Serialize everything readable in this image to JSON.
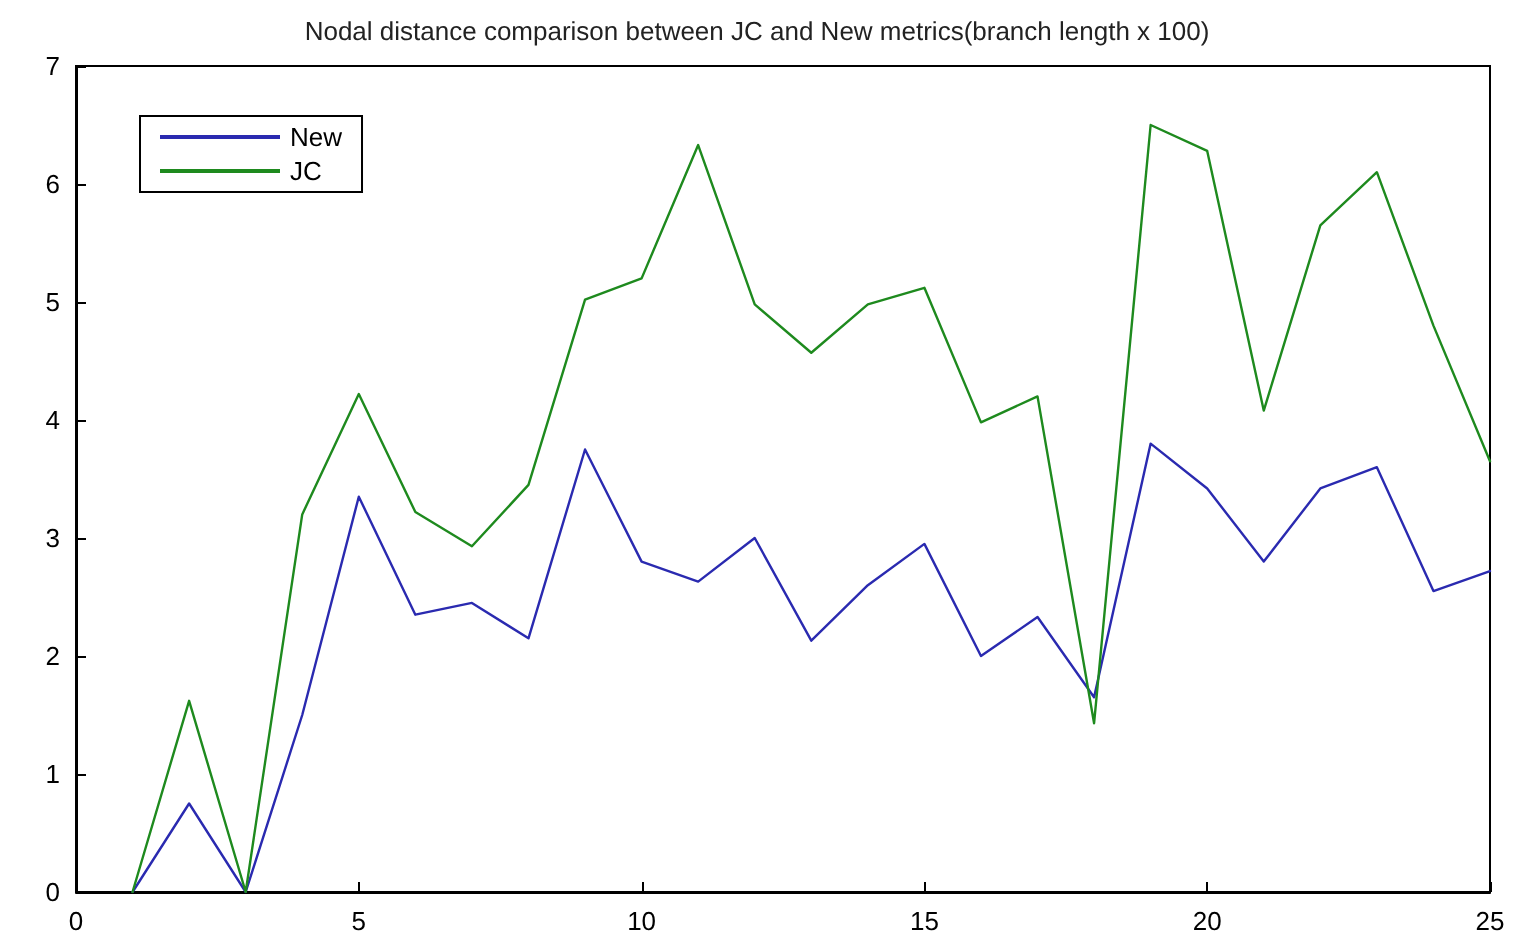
{
  "chart_data": {
    "type": "line",
    "title": "Nodal distance comparison between JC and New metrics(branch length x 100)",
    "x": [
      1,
      2,
      3,
      4,
      5,
      6,
      7,
      8,
      9,
      10,
      11,
      12,
      13,
      14,
      15,
      16,
      17,
      18,
      19,
      20,
      21,
      22,
      23,
      24,
      25
    ],
    "series": [
      {
        "name": "New",
        "color": "#2a2ab0",
        "values": [
          0,
          0.75,
          0,
          1.5,
          3.35,
          2.35,
          2.45,
          2.15,
          3.75,
          2.8,
          2.63,
          3.0,
          2.13,
          2.6,
          2.95,
          2.0,
          2.33,
          1.65,
          3.8,
          3.42,
          2.8,
          3.42,
          3.6,
          2.55,
          2.72
        ]
      },
      {
        "name": "JC",
        "color": "#1e8a1e",
        "values": [
          0,
          1.62,
          0,
          3.2,
          4.22,
          3.22,
          2.93,
          3.45,
          5.02,
          5.2,
          6.33,
          4.98,
          4.57,
          4.98,
          5.12,
          3.98,
          4.2,
          1.43,
          6.5,
          6.28,
          4.08,
          5.65,
          6.1,
          4.8,
          3.65
        ]
      }
    ],
    "xlim": [
      0,
      25
    ],
    "xticks": [
      0,
      5,
      10,
      15,
      20,
      25
    ],
    "ylim": [
      0,
      7
    ],
    "yticks": [
      0,
      1,
      2,
      3,
      4,
      5,
      6,
      7
    ],
    "grid": false,
    "legend": "top left",
    "marker": "none",
    "line_style": "solid"
  }
}
